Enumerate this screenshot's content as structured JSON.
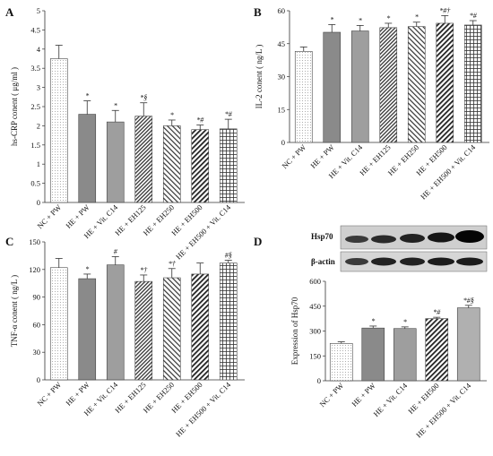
{
  "chart_data": [
    {
      "type": "bar",
      "panel": "A",
      "ylabel": "hs-CRP conent ( μg/ml )",
      "ylim": [
        0,
        5
      ],
      "yticks": [
        0,
        0.5,
        1,
        1.5,
        2,
        2.5,
        3,
        3.5,
        4,
        4.5,
        5
      ],
      "categories": [
        "NC + PW",
        "HE + PW",
        "HE + Vit. C14",
        "HE + EH125",
        "HE + EH250",
        "HE + EH500",
        "HE + EH500 + Vit. C14"
      ],
      "values": [
        3.75,
        2.3,
        2.1,
        2.25,
        2.0,
        1.9,
        1.92
      ],
      "errors": [
        0.35,
        0.35,
        0.3,
        0.35,
        0.15,
        0.12,
        0.25
      ],
      "annotations": [
        "",
        "*",
        "*",
        "*§",
        "*",
        "*#",
        "*#"
      ],
      "patterns": [
        "dots",
        "solid-dark",
        "solid-mid",
        "diag-dense",
        "diag-light",
        "diag-bold",
        "grid"
      ]
    },
    {
      "type": "bar",
      "panel": "B",
      "ylabel": "IL-2 conent ( ng/L )",
      "ylim": [
        0,
        60
      ],
      "yticks": [
        0,
        15,
        30,
        45,
        60
      ],
      "categories": [
        "NC + PW",
        "HE + PW",
        "HE + Vit. C14",
        "HE + EH125",
        "HE + EH250",
        "HE + EH500",
        "HE + EH500 + Vit. C14"
      ],
      "values": [
        41.5,
        50.2,
        50.8,
        52.3,
        52.8,
        54.3,
        53.5
      ],
      "errors": [
        2.0,
        3.5,
        2.5,
        2.0,
        2.0,
        3.5,
        2.0
      ],
      "annotations": [
        "",
        "*",
        "*",
        "*",
        "*",
        "*#†",
        "*#"
      ],
      "patterns": [
        "dots",
        "solid-dark",
        "solid-mid",
        "diag-dense",
        "diag-light",
        "diag-bold",
        "grid"
      ]
    },
    {
      "type": "bar",
      "panel": "C",
      "ylabel": "TNF-α conent ( ng/L )",
      "ylim": [
        0,
        150
      ],
      "yticks": [
        0,
        30,
        60,
        90,
        120,
        150
      ],
      "categories": [
        "NC + PW",
        "HE + PW",
        "HE + Vit. C14",
        "HE + EH125",
        "HE + EH250",
        "HE + EH500",
        "HE + EH500 + Vit. C14"
      ],
      "values": [
        122,
        110,
        125,
        107,
        111,
        115,
        127
      ],
      "errors": [
        10,
        5,
        9,
        7,
        10,
        12,
        3
      ],
      "annotations": [
        "",
        "*",
        "#",
        "*†",
        "*†",
        "",
        "#§"
      ],
      "patterns": [
        "dots",
        "solid-dark",
        "solid-mid",
        "diag-dense",
        "diag-light",
        "diag-bold",
        "grid"
      ]
    },
    {
      "type": "bar",
      "panel": "D",
      "ylabel": "Expression of Hsp70",
      "ylim": [
        0,
        600
      ],
      "yticks": [
        0,
        150,
        300,
        450,
        600
      ],
      "categories": [
        "NC + PW",
        "HE + PW",
        "HE + Vit. C14",
        "HE + EH500",
        "HE + EH500 + Vit. C14"
      ],
      "values": [
        225,
        318,
        315,
        375,
        440
      ],
      "errors": [
        10,
        12,
        10,
        8,
        15
      ],
      "annotations": [
        "",
        "*",
        "*",
        "*#",
        "*#§"
      ],
      "patterns": [
        "dots",
        "solid-dark",
        "solid-mid",
        "diag-bold",
        "solid-light"
      ],
      "blot_labels": [
        "Hsp70",
        "β-actin"
      ]
    }
  ]
}
